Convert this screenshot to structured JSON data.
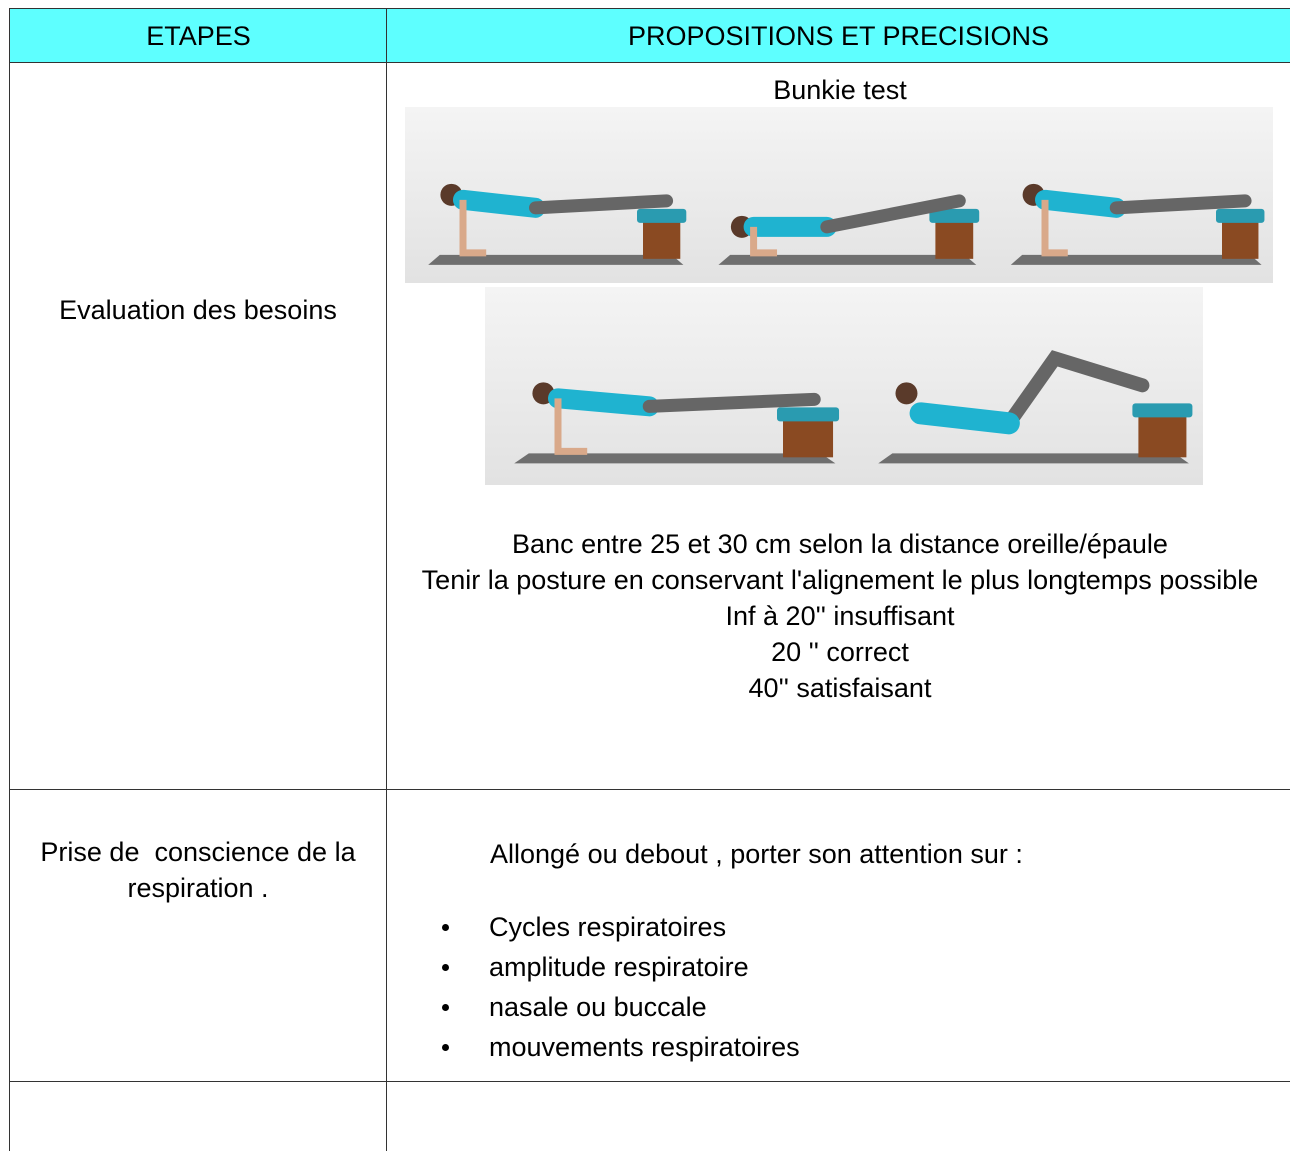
{
  "table": {
    "header": [
      "ETAPES",
      "PROPOSITIONS ET PRECISIONS"
    ],
    "rows": [
      {
        "step": "Evaluation des besoins",
        "title": "Bunkie test",
        "lines": [
          "Banc entre 25 et 30 cm selon la distance oreille/épaule",
          "Tenir la posture en conservant l'alignement le plus longtemps possible",
          "Inf à 20'' insuffisant",
          "20 '' correct",
          "40'' satisfaisant"
        ]
      },
      {
        "step": "Prise de  conscience de la respiration .",
        "intro": "Allongé ou debout , porter son attention sur :",
        "bullets": [
          "Cycles respiratoires",
          "amplitude respiratoire",
          "nasale ou  buccale",
          "mouvements respiratoires"
        ]
      }
    ]
  }
}
